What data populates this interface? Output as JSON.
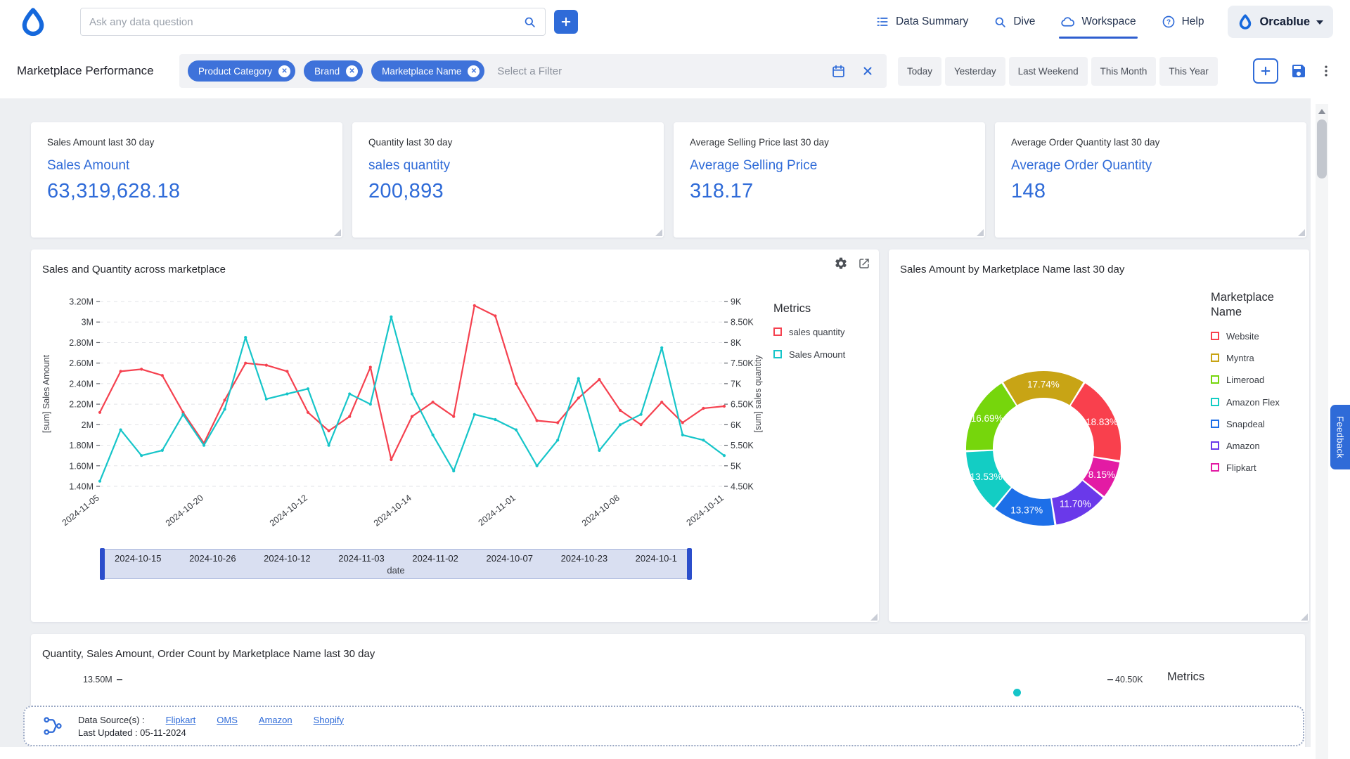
{
  "topbar": {
    "search_placeholder": "Ask any data question",
    "nav": [
      {
        "label": "Data Summary"
      },
      {
        "label": "Dive"
      },
      {
        "label": "Workspace"
      },
      {
        "label": "Help"
      }
    ],
    "account_label": "Orcablue"
  },
  "filterbar": {
    "title": "Marketplace Performance",
    "chips": [
      "Product Category",
      "Brand",
      "Marketplace Name"
    ],
    "filter_placeholder": "Select a Filter",
    "presets": [
      "Today",
      "Yesterday",
      "Last Weekend",
      "This Month",
      "This Year"
    ]
  },
  "kpis": [
    {
      "label": "Sales Amount last 30 day",
      "title": "Sales Amount",
      "value": "63,319,628.18"
    },
    {
      "label": "Quantity last 30 day",
      "title": "sales quantity",
      "value": "200,893"
    },
    {
      "label": "Average Selling Price last 30 day",
      "title": "Average Selling Price",
      "value": "318.17"
    },
    {
      "label": "Average Order Quantity last 30 day",
      "title": "Average Order Quantity",
      "value": "148"
    }
  ],
  "footer": {
    "label": "Data Source(s) :",
    "sources": [
      "Flipkart",
      "OMS",
      "Amazon",
      "Shopify"
    ],
    "last_updated": "Last Updated : 05-11-2024"
  },
  "feedback_label": "Feedback",
  "chart_data": [
    {
      "type": "line",
      "title": "Sales and Quantity across marketplace",
      "legend_title": "Metrics",
      "x_tick_labels": [
        "2024-11-05",
        "2024-10-20",
        "2024-10-12",
        "2024-10-14",
        "2024-11-01",
        "2024-10-08",
        "2024-10-11"
      ],
      "y_left": {
        "label": "[sum] Sales Amount",
        "min": 1400000,
        "max": 3200000,
        "ticks": [
          "3.20M",
          "3M",
          "2.80M",
          "2.60M",
          "2.40M",
          "2.20M",
          "2M",
          "1.80M",
          "1.60M",
          "1.40M"
        ]
      },
      "y_right": {
        "label": "[sum] sales quantity",
        "min": 4500,
        "max": 9000,
        "ticks": [
          "9K",
          "8.50K",
          "8K",
          "7.50K",
          "7K",
          "6.50K",
          "6K",
          "5.50K",
          "5K",
          "4.50K"
        ]
      },
      "series": [
        {
          "name": "sales quantity",
          "color": "#F5414F",
          "axis": "right",
          "values": [
            6300,
            7300,
            7350,
            7200,
            6300,
            5550,
            6600,
            7500,
            7450,
            7300,
            6300,
            5850,
            6200,
            7400,
            5150,
            6200,
            6550,
            6200,
            8900,
            8650,
            7000,
            6100,
            6050,
            6650,
            7100,
            6350,
            6000,
            6550,
            6050,
            6400,
            6450
          ]
        },
        {
          "name": "Sales Amount",
          "color": "#16C5C9",
          "axis": "left",
          "values": [
            1450000,
            1950000,
            1700000,
            1750000,
            2100000,
            1800000,
            2150000,
            2850000,
            2250000,
            2300000,
            2350000,
            1800000,
            2300000,
            2200000,
            3050000,
            2300000,
            1900000,
            1550000,
            2100000,
            2050000,
            1950000,
            1600000,
            1850000,
            2450000,
            1750000,
            2000000,
            2100000,
            2750000,
            1900000,
            1850000,
            1700000
          ]
        }
      ],
      "slider": {
        "dates": [
          "2024-10-15",
          "2024-10-26",
          "2024-10-12",
          "2024-11-03",
          "2024-11-02",
          "2024-10-07",
          "2024-10-23",
          "2024-10-1"
        ],
        "axis_label": "date"
      }
    },
    {
      "type": "pie",
      "title": "Sales Amount by Marketplace Name last 30 day",
      "legend_title": "Marketplace Name",
      "start_angle_deg": -32,
      "segments": [
        {
          "label": "Myntra",
          "pct": 17.74,
          "color": "#C8A415"
        },
        {
          "label": "Website",
          "pct": 18.83,
          "color": "#F9404D"
        },
        {
          "label": "Flipkart",
          "pct": 8.15,
          "color": "#E31BA4"
        },
        {
          "label": "Amazon",
          "pct": 11.7,
          "color": "#6A39EA"
        },
        {
          "label": "Snapdeal",
          "pct": 13.37,
          "color": "#1D6FE8"
        },
        {
          "label": "Amazon Flex",
          "pct": 13.53,
          "color": "#13CDC4"
        },
        {
          "label": "Limeroad",
          "pct": 16.69,
          "color": "#76D60C"
        }
      ],
      "legend": [
        {
          "label": "Website",
          "color": "#F9404D"
        },
        {
          "label": "Myntra",
          "color": "#C8A415"
        },
        {
          "label": "Limeroad",
          "color": "#76D60C"
        },
        {
          "label": "Amazon Flex",
          "color": "#13CDC4"
        },
        {
          "label": "Snapdeal",
          "color": "#1D6FE8"
        },
        {
          "label": "Amazon",
          "color": "#6A39EA"
        },
        {
          "label": "Flipkart",
          "color": "#E31BA4"
        }
      ]
    },
    {
      "type": "bar",
      "title": "Quantity, Sales Amount, Order Count by Marketplace Name last 30 day",
      "legend_title": "Metrics",
      "left_tick": "13.50M",
      "right_tick": "40.50K",
      "dot_color": "#16C5C9"
    }
  ]
}
